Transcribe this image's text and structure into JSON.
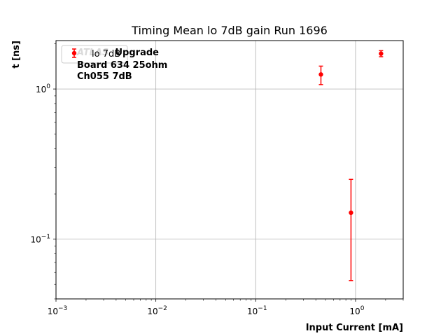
{
  "chart_data": {
    "type": "scatter",
    "title": "Timing Mean lo 7dB gain Run 1696",
    "xlabel": "Input Current [mA]",
    "ylabel": "t [ns]",
    "xscale": "log",
    "yscale": "log",
    "xlim": [
      0.001,
      3
    ],
    "ylim": [
      0.04,
      2.1
    ],
    "grid": true,
    "legend_position": "top-left",
    "x_ticks": [
      {
        "value": 0.001,
        "label": "10",
        "exp": "−3"
      },
      {
        "value": 0.01,
        "label": "10",
        "exp": "−2"
      },
      {
        "value": 0.1,
        "label": "10",
        "exp": "−1"
      },
      {
        "value": 1,
        "label": "10",
        "exp": "0"
      }
    ],
    "y_ticks": [
      {
        "value": 0.1,
        "label": "10",
        "exp": "−1"
      },
      {
        "value": 1,
        "label": "10",
        "exp": "0"
      }
    ],
    "annotations": {
      "line1_italic": "ATLAS",
      "line1_rest": "Upgrade",
      "line2": "Board 634 25ohm",
      "line3": "Ch055 7dB"
    },
    "series": [
      {
        "name": "lo 7dB",
        "color": "#ff0000",
        "points": [
          {
            "x": 0.45,
            "y": 1.25,
            "err_low": 0.18,
            "err_high": 0.17
          },
          {
            "x": 0.9,
            "y": 0.15,
            "err_low": 0.097,
            "err_high": 0.1
          },
          {
            "x": 1.8,
            "y": 1.72,
            "err_low": 0.08,
            "err_high": 0.08
          }
        ]
      }
    ]
  }
}
